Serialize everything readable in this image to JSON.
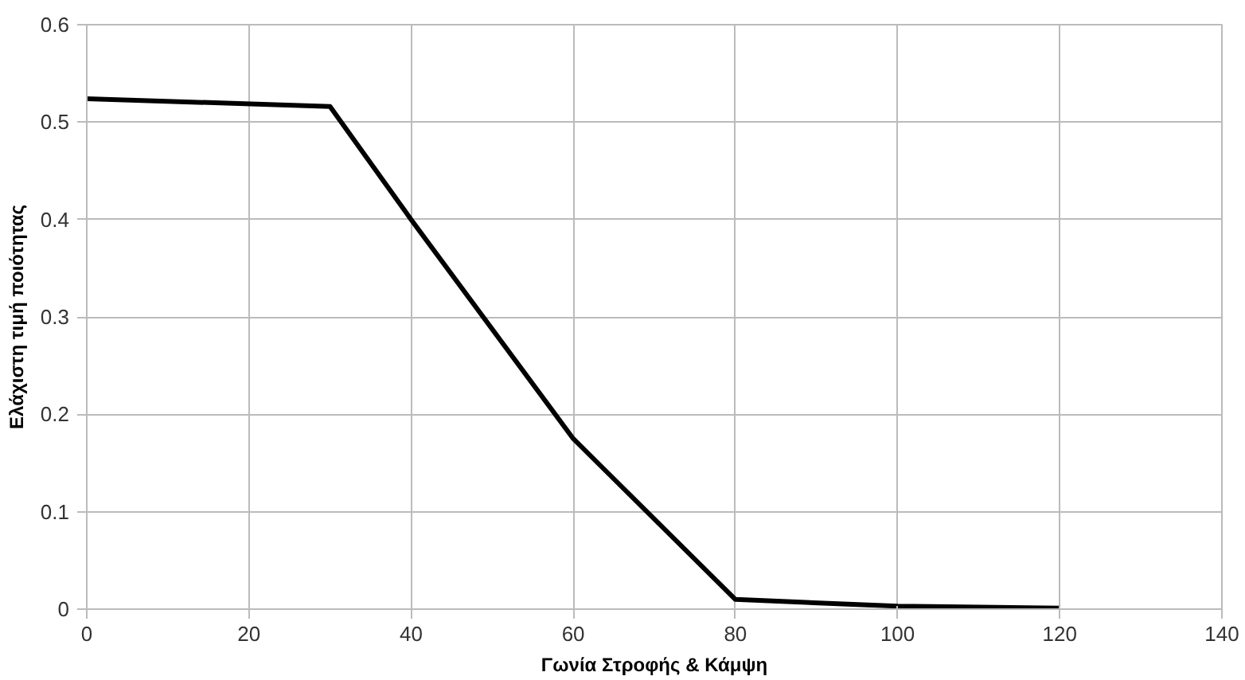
{
  "chart_data": {
    "type": "line",
    "xlabel": "Γωνία Στροφής & Κάμψη",
    "ylabel": "Ελάχιστη τιμή ποιότητας",
    "x": [
      0,
      30,
      40,
      60,
      80,
      100,
      120
    ],
    "series": [
      {
        "color": "#000000",
        "values": [
          0.524,
          0.516,
          0.4,
          0.175,
          0.01,
          0.003,
          0.001
        ]
      }
    ],
    "xlim": [
      0,
      140
    ],
    "xticks": [
      0,
      20,
      40,
      60,
      80,
      100,
      120,
      140
    ],
    "ylim": [
      0,
      0.6
    ],
    "yticks": [
      0,
      0.1,
      0.2,
      0.3,
      0.4,
      0.5,
      0.6
    ],
    "grid": true,
    "marker": "none",
    "line_style": "solid"
  }
}
